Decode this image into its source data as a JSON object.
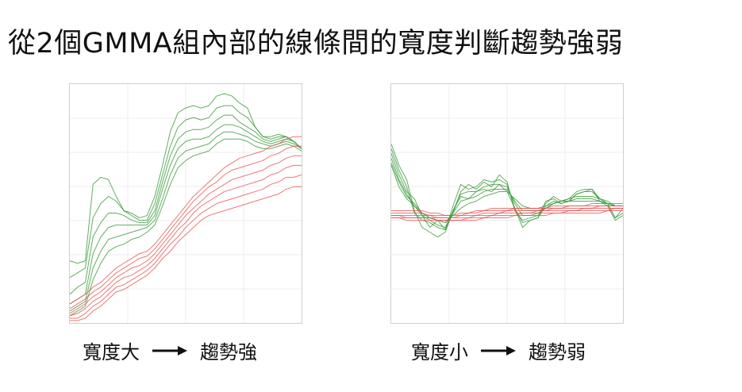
{
  "title": "從2個GMMA組內部的線條間的寬度判斷趨勢強弱",
  "colors": {
    "short_group": "#3a9a3a",
    "long_group": "#e8494a",
    "grid": "#eeeeee",
    "frame": "#cfcfcf"
  },
  "panels": [
    {
      "caption_left": "寬度大",
      "arrow_icon": "right-arrow-icon",
      "caption_right": "趨勢強"
    },
    {
      "caption_left": "寬度小",
      "arrow_icon": "right-arrow-icon",
      "caption_right": "趨勢弱"
    }
  ],
  "chart_data": [
    {
      "type": "line",
      "title": "",
      "xlabel": "",
      "ylabel": "",
      "grid": true,
      "legend": "none",
      "xlim": [
        0,
        30
      ],
      "ylim": [
        0,
        100
      ],
      "x": [
        0,
        1,
        2,
        3,
        4,
        5,
        6,
        7,
        8,
        9,
        10,
        11,
        12,
        13,
        14,
        15,
        16,
        17,
        18,
        19,
        20,
        21,
        22,
        23,
        24,
        25,
        26,
        27,
        28,
        29,
        30
      ],
      "series": [
        {
          "group": "short",
          "values": [
            26,
            25,
            26,
            58,
            61,
            60,
            53,
            47,
            46,
            44,
            45,
            53,
            66,
            80,
            88,
            90,
            91,
            90,
            91,
            95,
            96,
            95,
            92,
            90,
            82,
            78,
            78,
            79,
            78,
            76,
            73
          ]
        },
        {
          "group": "short",
          "values": [
            19,
            21,
            23,
            44,
            50,
            53,
            51,
            47,
            45,
            43,
            43,
            50,
            62,
            74,
            82,
            85,
            86,
            85,
            86,
            90,
            91,
            91,
            88,
            86,
            82,
            78,
            77,
            78,
            78,
            76,
            73
          ]
        },
        {
          "group": "short",
          "values": [
            12,
            15,
            17,
            36,
            42,
            46,
            46,
            45,
            43,
            42,
            42,
            47,
            59,
            70,
            77,
            80,
            81,
            81,
            82,
            85,
            87,
            87,
            84,
            82,
            80,
            77,
            76,
            77,
            78,
            76,
            73
          ]
        },
        {
          "group": "short",
          "values": [
            8,
            10,
            12,
            29,
            36,
            40,
            41,
            41,
            41,
            41,
            41,
            45,
            56,
            66,
            73,
            76,
            77,
            77,
            78,
            81,
            83,
            83,
            82,
            80,
            78,
            76,
            75,
            76,
            77,
            76,
            73
          ]
        },
        {
          "group": "short",
          "values": [
            5,
            7,
            9,
            23,
            30,
            35,
            36,
            37,
            38,
            39,
            40,
            43,
            52,
            62,
            69,
            72,
            73,
            74,
            75,
            78,
            80,
            80,
            79,
            78,
            76,
            75,
            74,
            75,
            76,
            75,
            73
          ]
        },
        {
          "group": "short",
          "values": [
            3,
            5,
            7,
            18,
            25,
            30,
            32,
            33,
            35,
            36,
            38,
            41,
            49,
            58,
            65,
            68,
            70,
            71,
            72,
            75,
            77,
            77,
            77,
            76,
            74,
            73,
            73,
            74,
            75,
            74,
            72
          ]
        },
        {
          "group": "long",
          "values": [
            8,
            10,
            12,
            15,
            17,
            20,
            23,
            25,
            27,
            29,
            30,
            33,
            37,
            41,
            45,
            49,
            53,
            56,
            59,
            62,
            65,
            67,
            69,
            70,
            71,
            72,
            74,
            75,
            77,
            78,
            78
          ]
        },
        {
          "group": "long",
          "values": [
            6,
            8,
            10,
            13,
            15,
            18,
            21,
            23,
            25,
            27,
            28,
            31,
            35,
            39,
            43,
            47,
            51,
            54,
            57,
            59,
            62,
            64,
            65,
            66,
            67,
            68,
            70,
            71,
            73,
            74,
            74
          ]
        },
        {
          "group": "long",
          "values": [
            4,
            6,
            8,
            11,
            13,
            16,
            19,
            21,
            23,
            24,
            26,
            29,
            33,
            37,
            41,
            45,
            48,
            51,
            54,
            56,
            58,
            60,
            61,
            62,
            63,
            64,
            66,
            67,
            69,
            70,
            70
          ]
        },
        {
          "group": "long",
          "values": [
            3,
            4,
            6,
            9,
            11,
            14,
            17,
            19,
            20,
            22,
            24,
            27,
            31,
            35,
            39,
            42,
            46,
            49,
            51,
            53,
            55,
            56,
            57,
            58,
            59,
            60,
            62,
            63,
            65,
            66,
            66
          ]
        },
        {
          "group": "long",
          "values": [
            2,
            2,
            4,
            7,
            9,
            12,
            15,
            16,
            18,
            20,
            22,
            25,
            29,
            33,
            36,
            40,
            43,
            46,
            48,
            50,
            51,
            52,
            53,
            54,
            55,
            56,
            58,
            59,
            61,
            61,
            62
          ]
        },
        {
          "group": "long",
          "values": [
            1,
            1,
            2,
            5,
            7,
            10,
            13,
            14,
            16,
            18,
            20,
            23,
            27,
            30,
            34,
            37,
            40,
            43,
            45,
            46,
            47,
            48,
            49,
            50,
            51,
            52,
            53,
            54,
            56,
            57,
            57
          ]
        }
      ]
    },
    {
      "type": "line",
      "title": "",
      "xlabel": "",
      "ylabel": "",
      "grid": true,
      "legend": "none",
      "xlim": [
        0,
        30
      ],
      "ylim": [
        0,
        100
      ],
      "x": [
        0,
        1,
        2,
        3,
        4,
        5,
        6,
        7,
        8,
        9,
        10,
        11,
        12,
        13,
        14,
        15,
        16,
        17,
        18,
        19,
        20,
        21,
        22,
        23,
        24,
        25,
        26,
        27,
        28,
        29,
        30
      ],
      "series": [
        {
          "group": "short",
          "values": [
            71,
            62,
            55,
            52,
            45,
            40,
            43,
            39,
            49,
            58,
            56,
            57,
            60,
            59,
            60,
            58,
            48,
            42,
            43,
            44,
            49,
            51,
            50,
            51,
            54,
            55,
            55,
            52,
            50,
            44,
            48
          ]
        },
        {
          "group": "short",
          "values": [
            69,
            60,
            54,
            49,
            45,
            43,
            41,
            40,
            47,
            54,
            55,
            55,
            57,
            58,
            58,
            57,
            50,
            45,
            45,
            46,
            48,
            50,
            51,
            52,
            53,
            53,
            53,
            52,
            51,
            49,
            49
          ]
        },
        {
          "group": "short",
          "values": [
            67,
            59,
            53,
            50,
            46,
            44,
            43,
            42,
            46,
            51,
            52,
            53,
            55,
            56,
            56,
            56,
            51,
            47,
            47,
            47,
            48,
            50,
            51,
            51,
            52,
            52,
            52,
            51,
            50,
            49,
            49
          ]
        },
        {
          "group": "short",
          "values": [
            66,
            57,
            52,
            49,
            46,
            44,
            43,
            42,
            45,
            48,
            50,
            51,
            53,
            54,
            55,
            55,
            52,
            49,
            48,
            48,
            49,
            50,
            51,
            51,
            51,
            51,
            51,
            51,
            50,
            49,
            49
          ]
        },
        {
          "group": "short",
          "values": [
            75,
            66,
            60,
            47,
            40,
            38,
            36,
            38,
            47,
            53,
            52,
            55,
            56,
            55,
            58,
            55,
            48,
            40,
            43,
            44,
            51,
            52,
            50,
            51,
            54,
            55,
            56,
            51,
            49,
            43,
            45
          ]
        },
        {
          "group": "short",
          "values": [
            73,
            64,
            57,
            46,
            43,
            42,
            40,
            39,
            46,
            55,
            58,
            56,
            59,
            57,
            62,
            59,
            47,
            43,
            44,
            45,
            50,
            53,
            51,
            52,
            55,
            56,
            56,
            52,
            50,
            44,
            46
          ]
        },
        {
          "group": "long",
          "values": [
            47,
            47,
            47,
            47,
            47,
            46,
            46,
            45,
            45,
            46,
            46,
            47,
            47,
            48,
            48,
            48,
            48,
            48,
            48,
            48,
            48,
            49,
            49,
            49,
            49,
            49,
            50,
            50,
            50,
            50,
            50
          ]
        },
        {
          "group": "long",
          "values": [
            46,
            46,
            46,
            46,
            46,
            45,
            45,
            45,
            45,
            45,
            46,
            46,
            47,
            47,
            47,
            47,
            48,
            48,
            48,
            48,
            48,
            48,
            48,
            49,
            49,
            49,
            49,
            49,
            49,
            49,
            49
          ]
        },
        {
          "group": "long",
          "values": [
            45,
            45,
            45,
            45,
            45,
            45,
            44,
            44,
            44,
            45,
            45,
            45,
            46,
            46,
            46,
            47,
            47,
            47,
            47,
            47,
            47,
            48,
            48,
            48,
            48,
            48,
            48,
            49,
            49,
            49,
            49
          ]
        },
        {
          "group": "long",
          "values": [
            45,
            45,
            44,
            44,
            44,
            44,
            44,
            44,
            44,
            44,
            44,
            45,
            45,
            45,
            46,
            46,
            46,
            46,
            46,
            47,
            47,
            47,
            47,
            47,
            47,
            48,
            48,
            48,
            48,
            48,
            48
          ]
        },
        {
          "group": "long",
          "values": [
            44,
            44,
            44,
            44,
            44,
            44,
            43,
            43,
            43,
            43,
            44,
            44,
            44,
            45,
            45,
            45,
            45,
            46,
            46,
            46,
            46,
            46,
            46,
            47,
            47,
            47,
            47,
            47,
            47,
            48,
            48
          ]
        },
        {
          "group": "long",
          "values": [
            44,
            44,
            43,
            43,
            43,
            43,
            43,
            43,
            43,
            43,
            43,
            43,
            44,
            44,
            44,
            44,
            45,
            45,
            45,
            45,
            45,
            46,
            46,
            46,
            46,
            46,
            46,
            46,
            47,
            47,
            47
          ]
        }
      ]
    }
  ]
}
